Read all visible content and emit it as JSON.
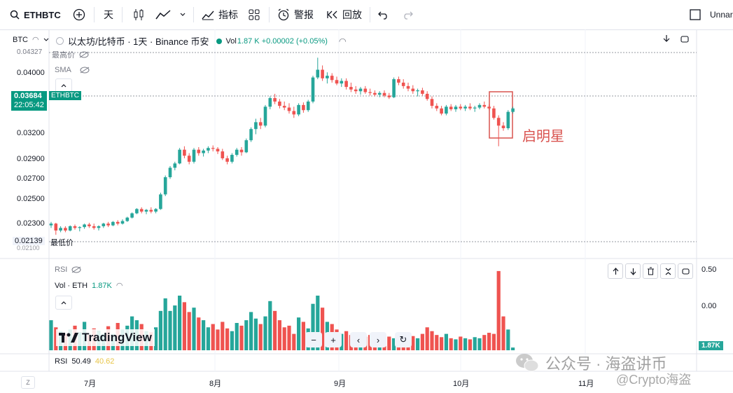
{
  "toolbar": {
    "symbol": "ETHBTC",
    "interval": "天",
    "indicators_label": "指标",
    "alert_label": "警报",
    "replay_label": "回放",
    "layout_name": "Unnar"
  },
  "legend": {
    "currency": "BTC",
    "title": "以太坊/比特币 · 1天 · Binance  币安",
    "vol_label": "Vol",
    "vol_value": "1.87 K +0.00002 (+0.05%)",
    "high_label": "最高价",
    "sma_label": "SMA",
    "low_label": "最低价"
  },
  "price_axis": {
    "labels": [
      "0.04000",
      "0.03200",
      "0.02900",
      "0.02700",
      "0.02500",
      "0.02300"
    ],
    "high_value": "0.04327",
    "low_value": "0.02139",
    "low_sub": "0.02100",
    "current_price": "0.03684",
    "countdown": "22:05:42",
    "symbol_tag": "ETHBTC"
  },
  "annotation": {
    "text": "启明星",
    "color": "#d9534f"
  },
  "volume_pane": {
    "rsi_label": "RSI",
    "vol_legend": "Vol · ETH",
    "vol_value": "1.87K",
    "axis_labels": [
      "0.50",
      "0.00"
    ],
    "last_badge": "1.87K",
    "brand": "TradingView"
  },
  "rsi_footer": {
    "label": "RSI",
    "value1": "50.49",
    "value2": "40.62"
  },
  "time_axis": {
    "labels": [
      "7月",
      "8月",
      "9月",
      "10月",
      "11月"
    ],
    "left_btn": "Z"
  },
  "watermark": {
    "text": "公众号 · 海盗讲币",
    "sub": "@Crypto海盗"
  },
  "colors": {
    "up": "#26a69a",
    "down": "#ef5350",
    "accent": "#089981"
  },
  "chart_data": {
    "type": "candlestick",
    "ylim": [
      0.0213,
      0.0433
    ],
    "candles": [
      [
        0.0232,
        0.0236,
        0.0229,
        0.0234
      ],
      [
        0.0234,
        0.0235,
        0.0221,
        0.0226
      ],
      [
        0.0226,
        0.0231,
        0.0224,
        0.0229
      ],
      [
        0.0229,
        0.0231,
        0.0224,
        0.0226
      ],
      [
        0.0226,
        0.0232,
        0.0225,
        0.0231
      ],
      [
        0.0231,
        0.0233,
        0.0227,
        0.0229
      ],
      [
        0.0229,
        0.0231,
        0.0225,
        0.023
      ],
      [
        0.023,
        0.0234,
        0.0228,
        0.0233
      ],
      [
        0.0233,
        0.0235,
        0.0229,
        0.0231
      ],
      [
        0.0231,
        0.0234,
        0.0227,
        0.0229
      ],
      [
        0.0229,
        0.0232,
        0.0226,
        0.0231
      ],
      [
        0.0231,
        0.0235,
        0.0229,
        0.0234
      ],
      [
        0.0234,
        0.0236,
        0.023,
        0.0232
      ],
      [
        0.0232,
        0.0237,
        0.0231,
        0.0236
      ],
      [
        0.0236,
        0.0238,
        0.0232,
        0.0234
      ],
      [
        0.0234,
        0.0239,
        0.0233,
        0.0237
      ],
      [
        0.0237,
        0.0242,
        0.0236,
        0.0241
      ],
      [
        0.0241,
        0.0247,
        0.024,
        0.0246
      ],
      [
        0.0246,
        0.0252,
        0.0245,
        0.0251
      ],
      [
        0.0251,
        0.0253,
        0.0246,
        0.0248
      ],
      [
        0.0248,
        0.0251,
        0.0245,
        0.025
      ],
      [
        0.025,
        0.0253,
        0.0246,
        0.0248
      ],
      [
        0.0248,
        0.0252,
        0.0246,
        0.0251
      ],
      [
        0.0251,
        0.027,
        0.025,
        0.0268
      ],
      [
        0.0268,
        0.029,
        0.0266,
        0.0288
      ],
      [
        0.0288,
        0.0301,
        0.0286,
        0.0299
      ],
      [
        0.0299,
        0.0306,
        0.0296,
        0.0304
      ],
      [
        0.0304,
        0.0322,
        0.0303,
        0.032
      ],
      [
        0.032,
        0.0324,
        0.031,
        0.0313
      ],
      [
        0.0313,
        0.0316,
        0.0303,
        0.0306
      ],
      [
        0.0306,
        0.0322,
        0.0304,
        0.032
      ],
      [
        0.032,
        0.0323,
        0.0313,
        0.0316
      ],
      [
        0.0316,
        0.0321,
        0.0312,
        0.0319
      ],
      [
        0.0319,
        0.0324,
        0.0316,
        0.0322
      ],
      [
        0.0322,
        0.0325,
        0.0318,
        0.0321
      ],
      [
        0.0321,
        0.0323,
        0.0315,
        0.0318
      ],
      [
        0.0318,
        0.0321,
        0.0308,
        0.031
      ],
      [
        0.031,
        0.0313,
        0.0303,
        0.0306
      ],
      [
        0.0306,
        0.0316,
        0.0304,
        0.0314
      ],
      [
        0.0314,
        0.0322,
        0.0312,
        0.032
      ],
      [
        0.032,
        0.0323,
        0.0313,
        0.0317
      ],
      [
        0.0317,
        0.0333,
        0.0316,
        0.0331
      ],
      [
        0.0331,
        0.0346,
        0.0329,
        0.0344
      ],
      [
        0.0344,
        0.0356,
        0.0338,
        0.0352
      ],
      [
        0.0352,
        0.0357,
        0.0344,
        0.0348
      ],
      [
        0.0348,
        0.0372,
        0.0346,
        0.037
      ],
      [
        0.037,
        0.0382,
        0.0367,
        0.038
      ],
      [
        0.038,
        0.0385,
        0.0373,
        0.0376
      ],
      [
        0.0376,
        0.0379,
        0.0368,
        0.0371
      ],
      [
        0.0371,
        0.0376,
        0.0366,
        0.0369
      ],
      [
        0.0369,
        0.0374,
        0.0362,
        0.0365
      ],
      [
        0.0365,
        0.037,
        0.0357,
        0.0361
      ],
      [
        0.0361,
        0.0374,
        0.0359,
        0.0372
      ],
      [
        0.0372,
        0.0375,
        0.0363,
        0.0366
      ],
      [
        0.0366,
        0.0378,
        0.0364,
        0.0376
      ],
      [
        0.0376,
        0.0406,
        0.0374,
        0.0404
      ],
      [
        0.0404,
        0.0427,
        0.0402,
        0.0413
      ],
      [
        0.0413,
        0.0418,
        0.04,
        0.0403
      ],
      [
        0.0403,
        0.041,
        0.0397,
        0.0406
      ],
      [
        0.0406,
        0.0409,
        0.0398,
        0.0401
      ],
      [
        0.0401,
        0.0405,
        0.0395,
        0.0397
      ],
      [
        0.0397,
        0.0403,
        0.0393,
        0.04
      ],
      [
        0.04,
        0.0403,
        0.039,
        0.0393
      ],
      [
        0.0393,
        0.0398,
        0.0387,
        0.039
      ],
      [
        0.039,
        0.0394,
        0.0385,
        0.0388
      ],
      [
        0.0388,
        0.0393,
        0.0384,
        0.0391
      ],
      [
        0.0391,
        0.0394,
        0.0385,
        0.0387
      ],
      [
        0.0387,
        0.0391,
        0.0383,
        0.0386
      ],
      [
        0.0386,
        0.0389,
        0.0382,
        0.0384
      ],
      [
        0.0384,
        0.0388,
        0.0381,
        0.0386
      ],
      [
        0.0386,
        0.0389,
        0.0381,
        0.0383
      ],
      [
        0.0383,
        0.0386,
        0.0379,
        0.0381
      ],
      [
        0.0381,
        0.0404,
        0.038,
        0.0402
      ],
      [
        0.0402,
        0.0405,
        0.0395,
        0.0398
      ],
      [
        0.0398,
        0.0402,
        0.0391,
        0.0394
      ],
      [
        0.0394,
        0.0398,
        0.0388,
        0.0391
      ],
      [
        0.0391,
        0.0395,
        0.0385,
        0.0388
      ],
      [
        0.0388,
        0.0391,
        0.0382,
        0.0389
      ],
      [
        0.0389,
        0.0392,
        0.0383,
        0.0385
      ],
      [
        0.0385,
        0.0388,
        0.0377,
        0.0379
      ],
      [
        0.0379,
        0.0382,
        0.0368,
        0.0371
      ],
      [
        0.0371,
        0.0374,
        0.0365,
        0.0368
      ],
      [
        0.0368,
        0.0371,
        0.036,
        0.0362
      ],
      [
        0.0362,
        0.0372,
        0.036,
        0.037
      ],
      [
        0.037,
        0.0373,
        0.0365,
        0.0367
      ],
      [
        0.0367,
        0.0372,
        0.0364,
        0.037
      ],
      [
        0.037,
        0.0373,
        0.0366,
        0.0368
      ],
      [
        0.0368,
        0.0372,
        0.0365,
        0.037
      ],
      [
        0.037,
        0.0374,
        0.0366,
        0.0368
      ],
      [
        0.0368,
        0.0371,
        0.0364,
        0.0369
      ],
      [
        0.0369,
        0.0374,
        0.0367,
        0.0372
      ],
      [
        0.0372,
        0.0376,
        0.0368,
        0.037
      ],
      [
        0.037,
        0.0373,
        0.0366,
        0.0368
      ],
      [
        0.0368,
        0.0371,
        0.0355,
        0.0357
      ],
      [
        0.0357,
        0.036,
        0.0324,
        0.0348
      ],
      [
        0.0348,
        0.0352,
        0.0342,
        0.0345
      ],
      [
        0.0345,
        0.0366,
        0.0343,
        0.0364
      ],
      [
        0.0364,
        0.037,
        0.0362,
        0.0368
      ]
    ],
    "volume": [
      0.55,
      0.42,
      0.35,
      0.3,
      0.38,
      0.45,
      0.33,
      0.52,
      0.28,
      0.4,
      0.36,
      0.3,
      0.44,
      0.3,
      0.5,
      0.38,
      0.45,
      0.62,
      0.55,
      0.48,
      0.35,
      0.33,
      0.42,
      0.72,
      0.95,
      0.72,
      0.82,
      1.0,
      0.88,
      0.7,
      0.78,
      0.6,
      0.55,
      0.42,
      0.48,
      0.38,
      0.52,
      0.4,
      0.35,
      0.5,
      0.45,
      0.55,
      0.7,
      0.58,
      0.48,
      0.62,
      0.9,
      0.72,
      0.55,
      0.42,
      0.45,
      0.3,
      0.6,
      0.52,
      0.4,
      0.85,
      1.0,
      0.78,
      0.52,
      0.48,
      0.38,
      0.3,
      0.35,
      0.28,
      0.32,
      0.3,
      0.25,
      0.28,
      0.22,
      0.2,
      0.18,
      0.25,
      0.22,
      0.28,
      0.24,
      0.2,
      0.26,
      0.22,
      0.3,
      0.42,
      0.35,
      0.28,
      0.24,
      0.3,
      0.22,
      0.2,
      0.25,
      0.22,
      0.2,
      0.24,
      0.22,
      0.28,
      0.32,
      0.3,
      1.45,
      0.62,
      0.38,
      0.05
    ]
  }
}
